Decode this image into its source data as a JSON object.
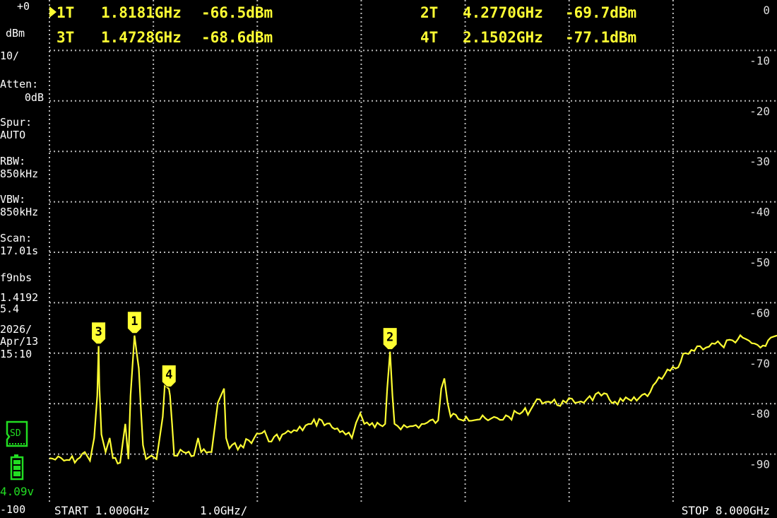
{
  "markers_readout": [
    {
      "label": "1T",
      "active": true,
      "freq": "1.8181GHz",
      "level": "-66.5dBm"
    },
    {
      "label": "2T",
      "active": false,
      "freq": "4.2770GHz",
      "level": "-69.7dBm"
    },
    {
      "label": "3T",
      "active": false,
      "freq": "1.4728GHz",
      "level": "-68.6dBm"
    },
    {
      "label": "4T",
      "active": false,
      "freq": "2.1502GHz",
      "level": "-77.1dBm"
    }
  ],
  "active_marker_icon": "triangle-right-icon",
  "sidebar": {
    "ref_level": "+0",
    "unit": "dBm",
    "scale": "10/",
    "atten_label": "Atten:",
    "atten_value": "0dB",
    "spur_label": "Spur:",
    "spur_value": "AUTO",
    "rbw_label": "RBW:",
    "rbw_value": "850kHz",
    "vbw_label": "VBW:",
    "vbw_value": "850kHz",
    "scan_label": "Scan:",
    "scan_value": "17.01s",
    "misc_label": "f9nbs",
    "misc_value1": "1.4192",
    "misc_value2": "5.4",
    "date": "2026/",
    "date2": "Apr/13",
    "time": "15:10",
    "sd_label": "SD",
    "battery_voltage": "4.09v",
    "bottom_level": "-100"
  },
  "footer": {
    "start": "START 1.000GHz",
    "per_div": "1.0GHz/",
    "stop": "STOP 8.000GHz"
  },
  "colors": {
    "trace": "#ffff33",
    "text": "#ffffff",
    "status": "#22dd22",
    "background": "#000000"
  },
  "chart_data": {
    "type": "line",
    "xlim": [
      1.0,
      8.0
    ],
    "ylim": [
      -100,
      0
    ],
    "x_unit": "GHz",
    "y_unit": "dBm",
    "y_ticks": [
      "0",
      "-10",
      "-20",
      "-30",
      "-40",
      "-50",
      "-60",
      "-70",
      "-80",
      "-90"
    ],
    "grid": true,
    "markers": [
      {
        "id": "1",
        "freq": 1.8181,
        "level": -66.5
      },
      {
        "id": "2",
        "freq": 4.277,
        "level": -69.7
      },
      {
        "id": "3",
        "freq": 1.4728,
        "level": -68.6
      },
      {
        "id": "4",
        "freq": 2.1502,
        "level": -77.1
      }
    ],
    "trace": [
      [
        1.0,
        -90.8
      ],
      [
        1.14,
        -91.3
      ],
      [
        1.27,
        -91.0
      ],
      [
        1.34,
        -89.6
      ],
      [
        1.39,
        -91.3
      ],
      [
        1.43,
        -86.8
      ],
      [
        1.46,
        -78.4
      ],
      [
        1.473,
        -68.6
      ],
      [
        1.48,
        -76.3
      ],
      [
        1.5,
        -86.1
      ],
      [
        1.54,
        -89.6
      ],
      [
        1.58,
        -86.8
      ],
      [
        1.61,
        -90.8
      ],
      [
        1.68,
        -91.7
      ],
      [
        1.73,
        -84.0
      ],
      [
        1.76,
        -91.0
      ],
      [
        1.78,
        -78.4
      ],
      [
        1.818,
        -66.5
      ],
      [
        1.84,
        -70.0
      ],
      [
        1.86,
        -73.0
      ],
      [
        1.88,
        -81.2
      ],
      [
        1.9,
        -88.2
      ],
      [
        1.93,
        -91.0
      ],
      [
        1.98,
        -90.3
      ],
      [
        2.03,
        -91.0
      ],
      [
        2.09,
        -82.6
      ],
      [
        2.11,
        -76.3
      ],
      [
        2.15,
        -77.1
      ],
      [
        2.16,
        -78.4
      ],
      [
        2.18,
        -84.0
      ],
      [
        2.2,
        -90.3
      ],
      [
        2.29,
        -89.6
      ],
      [
        2.39,
        -90.3
      ],
      [
        2.43,
        -86.8
      ],
      [
        2.46,
        -89.6
      ],
      [
        2.56,
        -89.6
      ],
      [
        2.62,
        -79.8
      ],
      [
        2.65,
        -78.4
      ],
      [
        2.68,
        -77.0
      ],
      [
        2.7,
        -86.8
      ],
      [
        2.73,
        -88.9
      ],
      [
        2.84,
        -88.2
      ],
      [
        2.97,
        -86.8
      ],
      [
        3.07,
        -85.4
      ],
      [
        3.11,
        -87.5
      ],
      [
        3.24,
        -86.1
      ],
      [
        3.38,
        -85.4
      ],
      [
        3.52,
        -84.0
      ],
      [
        3.62,
        -83.3
      ],
      [
        3.72,
        -84.7
      ],
      [
        3.82,
        -85.4
      ],
      [
        3.91,
        -86.8
      ],
      [
        3.95,
        -83.8
      ],
      [
        3.99,
        -81.9
      ],
      [
        4.03,
        -84.0
      ],
      [
        4.13,
        -84.7
      ],
      [
        4.23,
        -84.0
      ],
      [
        4.25,
        -77.0
      ],
      [
        4.277,
        -69.7
      ],
      [
        4.3,
        -78.4
      ],
      [
        4.32,
        -84.0
      ],
      [
        4.44,
        -84.7
      ],
      [
        4.61,
        -84.0
      ],
      [
        4.74,
        -83.3
      ],
      [
        4.77,
        -77.0
      ],
      [
        4.8,
        -75.0
      ],
      [
        4.83,
        -79.8
      ],
      [
        4.86,
        -82.6
      ],
      [
        5.01,
        -82.6
      ],
      [
        5.22,
        -83.3
      ],
      [
        5.42,
        -82.6
      ],
      [
        5.63,
        -81.2
      ],
      [
        5.69,
        -79.1
      ],
      [
        5.83,
        -79.8
      ],
      [
        5.97,
        -79.8
      ],
      [
        6.17,
        -79.1
      ],
      [
        6.31,
        -78.4
      ],
      [
        6.44,
        -79.6
      ],
      [
        6.65,
        -79.4
      ],
      [
        6.78,
        -77.7
      ],
      [
        6.92,
        -74.2
      ],
      [
        7.05,
        -72.8
      ],
      [
        7.12,
        -70.0
      ],
      [
        7.26,
        -68.6
      ],
      [
        7.46,
        -68.3
      ],
      [
        7.6,
        -67.9
      ],
      [
        7.67,
        -66.9
      ],
      [
        7.73,
        -67.5
      ],
      [
        7.84,
        -68.9
      ],
      [
        7.94,
        -66.9
      ],
      [
        8.0,
        -66.5
      ]
    ]
  }
}
